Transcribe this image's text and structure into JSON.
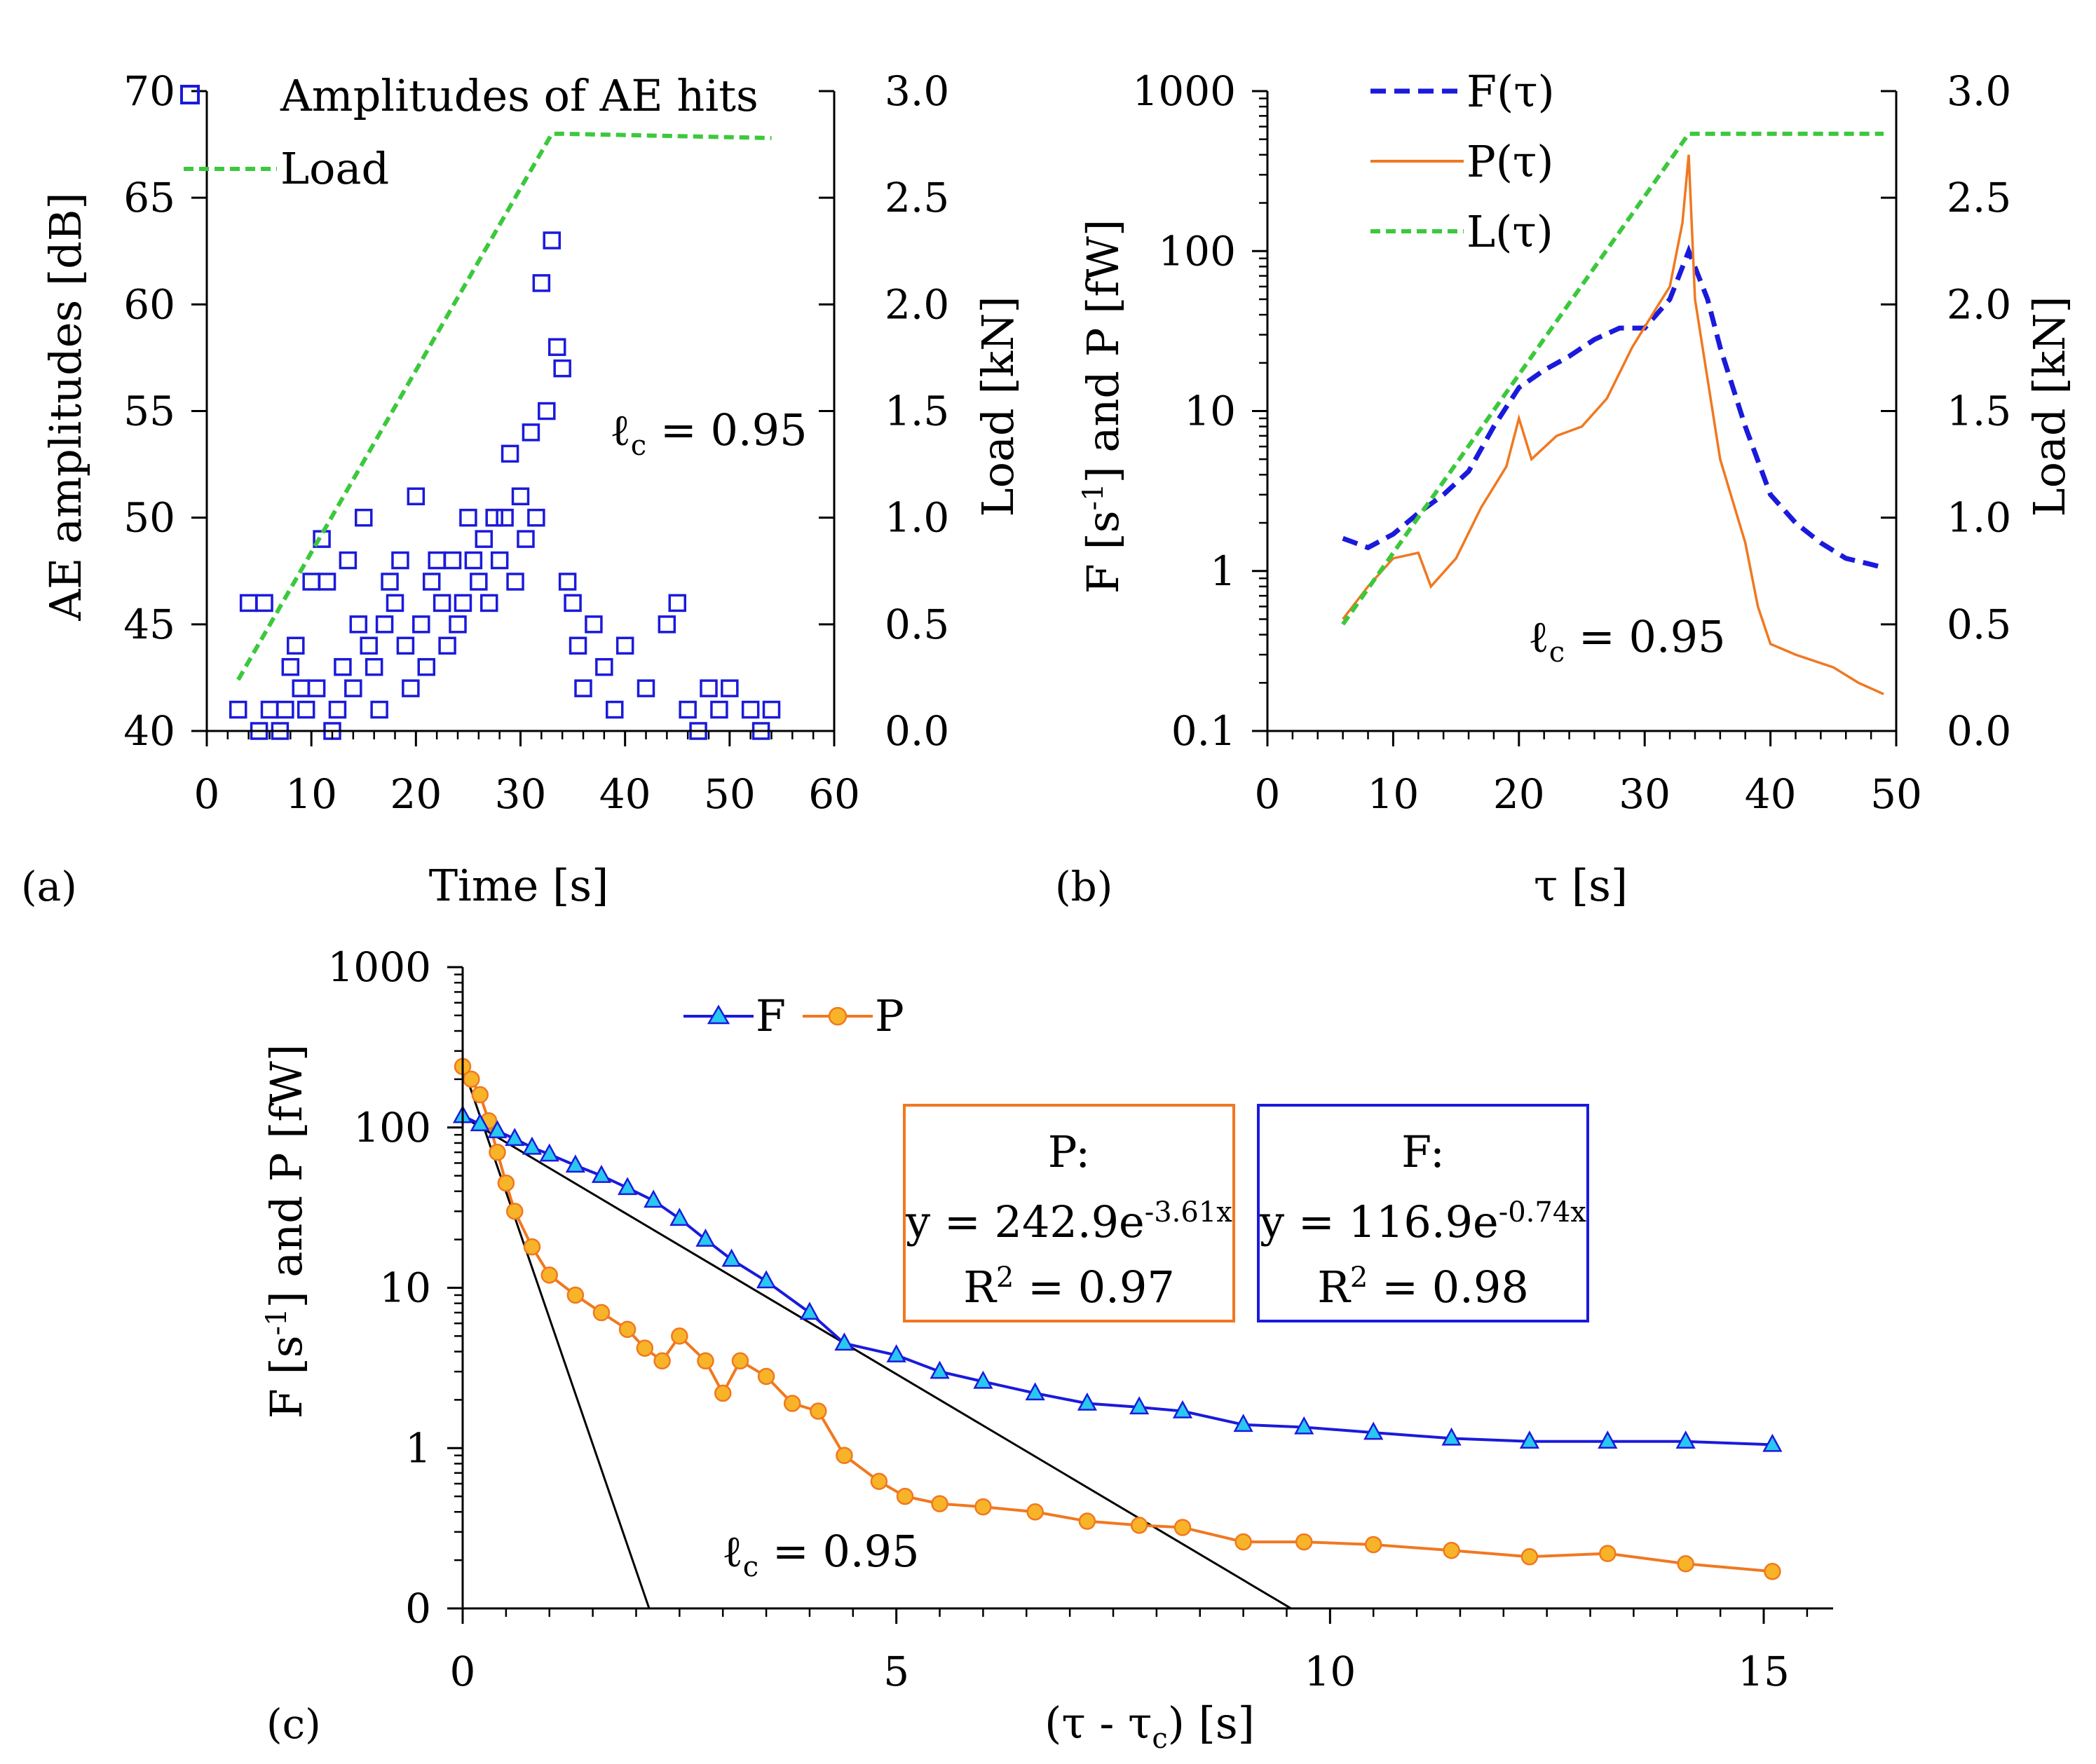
{
  "panels": {
    "a": {
      "tag": "(a)",
      "label_lc": "ℓ",
      "label_lc_sub": "c",
      "label_lc_val": " = 0.95",
      "legend": {
        "scatter": "Amplitudes of AE hits",
        "load": "Load"
      },
      "xlabel": "Time [s]",
      "ylabel_left": "AE amplitudes [dB]",
      "ylabel_right": "Load [kN]",
      "xticks": [
        "0",
        "10",
        "20",
        "30",
        "40",
        "50",
        "60"
      ],
      "yticks_left": [
        "40",
        "45",
        "50",
        "55",
        "60",
        "65",
        "70"
      ],
      "yticks_right": [
        "0.0",
        "0.5",
        "1.0",
        "1.5",
        "2.0",
        "2.5",
        "3.0"
      ]
    },
    "b": {
      "tag": "(b)",
      "label_lc": "ℓ",
      "label_lc_sub": "c",
      "label_lc_val": " = 0.95",
      "legend": {
        "F": "F(τ)",
        "P": "P(τ)",
        "L": "L(τ)"
      },
      "xlabel": "τ [s]",
      "ylabel_left_a": "F [s",
      "ylabel_left_sup": "-1",
      "ylabel_left_b": "] and P [fW]",
      "ylabel_right": "Load [kN]",
      "xticks": [
        "0",
        "10",
        "20",
        "30",
        "40",
        "50"
      ],
      "yticks_left": [
        "0.1",
        "1",
        "10",
        "100",
        "1000"
      ],
      "yticks_right": [
        "0.0",
        "0.5",
        "1.0",
        "1.5",
        "2.0",
        "2.5",
        "3.0"
      ]
    },
    "c": {
      "tag": "(c)",
      "label_lc": "ℓ",
      "label_lc_sub": "c",
      "label_lc_val": " = 0.95",
      "legend": {
        "F": "F",
        "P": "P"
      },
      "xlabel_a": "(τ - τ",
      "xlabel_sub": "c",
      "xlabel_b": ") [s]",
      "ylabel_left_a": "F [s",
      "ylabel_left_sup": "-1",
      "ylabel_left_b": "] and P [fW]",
      "xticks": [
        "0",
        "5",
        "10",
        "15"
      ],
      "yticks_left": [
        "0",
        "1",
        "10",
        "100",
        "1000"
      ],
      "box_P": {
        "title": "P:",
        "eq_a": "y = 242.9e",
        "eq_sup": "-3.61x",
        "r2_a": "R",
        "r2_sup": "2",
        "r2_b": " = 0.97"
      },
      "box_F": {
        "title": "F:",
        "eq_a": "y = 116.9e",
        "eq_sup": "-0.74x",
        "r2_a": "R",
        "r2_sup": "2",
        "r2_b": " = 0.98"
      }
    }
  },
  "colors": {
    "blue": "#1a1adc",
    "orange": "#f07820",
    "green": "#3cc83c",
    "cyan": "#28c8f0",
    "gold": "#f8b428",
    "black": "#000000"
  },
  "chart_data": [
    {
      "type": "scatter",
      "id": "a",
      "xlim": [
        0,
        60
      ],
      "ylim": [
        40,
        70
      ],
      "y2lim": [
        0,
        3
      ],
      "series": [
        {
          "name": "Amplitudes of AE hits",
          "points": [
            [
              3,
              41
            ],
            [
              4,
              46
            ],
            [
              5,
              40
            ],
            [
              5.5,
              46
            ],
            [
              6,
              41
            ],
            [
              7,
              40
            ],
            [
              7.5,
              41
            ],
            [
              8,
              43
            ],
            [
              8.5,
              44
            ],
            [
              9,
              42
            ],
            [
              9.5,
              41
            ],
            [
              10,
              47
            ],
            [
              10.5,
              42
            ],
            [
              11,
              49
            ],
            [
              11.5,
              47
            ],
            [
              12,
              40
            ],
            [
              12.5,
              41
            ],
            [
              13,
              43
            ],
            [
              13.5,
              48
            ],
            [
              14,
              42
            ],
            [
              14.5,
              45
            ],
            [
              15,
              50
            ],
            [
              15.5,
              44
            ],
            [
              16,
              43
            ],
            [
              16.5,
              41
            ],
            [
              17,
              45
            ],
            [
              17.5,
              47
            ],
            [
              18,
              46
            ],
            [
              18.5,
              48
            ],
            [
              19,
              44
            ],
            [
              19.5,
              42
            ],
            [
              20,
              51
            ],
            [
              20.5,
              45
            ],
            [
              21,
              43
            ],
            [
              21.5,
              47
            ],
            [
              22,
              48
            ],
            [
              22.5,
              46
            ],
            [
              23,
              44
            ],
            [
              23.5,
              48
            ],
            [
              24,
              45
            ],
            [
              24.5,
              46
            ],
            [
              25,
              50
            ],
            [
              25.5,
              48
            ],
            [
              26,
              47
            ],
            [
              26.5,
              49
            ],
            [
              27,
              46
            ],
            [
              27.5,
              50
            ],
            [
              28,
              48
            ],
            [
              28.5,
              50
            ],
            [
              29,
              53
            ],
            [
              29.5,
              47
            ],
            [
              30,
              51
            ],
            [
              30.5,
              49
            ],
            [
              31,
              54
            ],
            [
              31.5,
              50
            ],
            [
              32,
              61
            ],
            [
              32.5,
              55
            ],
            [
              33,
              63
            ],
            [
              33.5,
              58
            ],
            [
              34,
              57
            ],
            [
              34.5,
              47
            ],
            [
              35,
              46
            ],
            [
              35.5,
              44
            ],
            [
              36,
              42
            ],
            [
              37,
              45
            ],
            [
              38,
              43
            ],
            [
              39,
              41
            ],
            [
              40,
              44
            ],
            [
              42,
              42
            ],
            [
              44,
              45
            ],
            [
              45,
              46
            ],
            [
              46,
              41
            ],
            [
              47,
              40
            ],
            [
              48,
              42
            ],
            [
              49,
              41
            ],
            [
              50,
              42
            ],
            [
              52,
              41
            ],
            [
              53,
              40
            ],
            [
              54,
              41
            ]
          ]
        },
        {
          "name": "Load",
          "axis": "right",
          "points": [
            [
              3,
              0.24
            ],
            [
              33,
              2.8
            ],
            [
              34,
              2.8
            ],
            [
              54,
              2.78
            ]
          ]
        }
      ]
    },
    {
      "type": "line",
      "id": "b",
      "xlim": [
        0,
        50
      ],
      "ylim_log": [
        0.1,
        1000
      ],
      "y2lim": [
        0,
        3
      ],
      "series": [
        {
          "name": "F(τ)",
          "points": [
            [
              6,
              1.6
            ],
            [
              8,
              1.4
            ],
            [
              10,
              1.7
            ],
            [
              12,
              2.3
            ],
            [
              14,
              3.0
            ],
            [
              16,
              4.2
            ],
            [
              18,
              8.0
            ],
            [
              20,
              14
            ],
            [
              22,
              18
            ],
            [
              24,
              22
            ],
            [
              26,
              28
            ],
            [
              28,
              33
            ],
            [
              30,
              33
            ],
            [
              32,
              50
            ],
            [
              33.5,
              100
            ],
            [
              35,
              50
            ],
            [
              36,
              25
            ],
            [
              38,
              8
            ],
            [
              40,
              3
            ],
            [
              42,
              2
            ],
            [
              44,
              1.5
            ],
            [
              46,
              1.2
            ],
            [
              48,
              1.1
            ],
            [
              49,
              1.05
            ]
          ]
        },
        {
          "name": "P(τ)",
          "points": [
            [
              6,
              0.5
            ],
            [
              8,
              0.8
            ],
            [
              10,
              1.2
            ],
            [
              12,
              1.3
            ],
            [
              13,
              0.8
            ],
            [
              15,
              1.2
            ],
            [
              17,
              2.5
            ],
            [
              19,
              4.5
            ],
            [
              20,
              9
            ],
            [
              21,
              5
            ],
            [
              23,
              7
            ],
            [
              25,
              8
            ],
            [
              27,
              12
            ],
            [
              29,
              25
            ],
            [
              31,
              45
            ],
            [
              32,
              60
            ],
            [
              33,
              150
            ],
            [
              33.5,
              400
            ],
            [
              34,
              50
            ],
            [
              36,
              5
            ],
            [
              38,
              1.5
            ],
            [
              39,
              0.6
            ],
            [
              40,
              0.35
            ],
            [
              42,
              0.3
            ],
            [
              45,
              0.25
            ],
            [
              47,
              0.2
            ],
            [
              49,
              0.17
            ]
          ]
        },
        {
          "name": "L(τ)",
          "axis": "right",
          "points": [
            [
              6,
              0.5
            ],
            [
              33.5,
              2.8
            ],
            [
              49,
              2.8
            ]
          ]
        }
      ]
    },
    {
      "type": "line",
      "id": "c",
      "xlim": [
        0,
        15.8
      ],
      "ylim_log": [
        0.1,
        1000
      ],
      "series": [
        {
          "name": "F",
          "marker": "triangle",
          "points": [
            [
              0,
              118
            ],
            [
              0.2,
              105
            ],
            [
              0.4,
              95
            ],
            [
              0.6,
              85
            ],
            [
              0.8,
              75
            ],
            [
              1,
              68
            ],
            [
              1.3,
              58
            ],
            [
              1.6,
              50
            ],
            [
              1.9,
              42
            ],
            [
              2.2,
              35
            ],
            [
              2.5,
              27
            ],
            [
              2.8,
              20
            ],
            [
              3.1,
              15
            ],
            [
              3.5,
              11
            ],
            [
              4,
              7
            ],
            [
              4.4,
              4.5
            ],
            [
              5,
              3.8
            ],
            [
              5.5,
              3.0
            ],
            [
              6,
              2.6
            ],
            [
              6.6,
              2.2
            ],
            [
              7.2,
              1.9
            ],
            [
              7.8,
              1.8
            ],
            [
              8.3,
              1.7
            ],
            [
              9,
              1.4
            ],
            [
              9.7,
              1.35
            ],
            [
              10.5,
              1.25
            ],
            [
              11.4,
              1.15
            ],
            [
              12.3,
              1.1
            ],
            [
              13.2,
              1.1
            ],
            [
              14.1,
              1.1
            ],
            [
              15.1,
              1.05
            ]
          ]
        },
        {
          "name": "P",
          "marker": "circle",
          "points": [
            [
              0,
              240
            ],
            [
              0.1,
              200
            ],
            [
              0.2,
              160
            ],
            [
              0.3,
              110
            ],
            [
              0.4,
              70
            ],
            [
              0.5,
              45
            ],
            [
              0.6,
              30
            ],
            [
              0.8,
              18
            ],
            [
              1,
              12
            ],
            [
              1.3,
              9
            ],
            [
              1.6,
              7
            ],
            [
              1.9,
              5.5
            ],
            [
              2.1,
              4.2
            ],
            [
              2.3,
              3.5
            ],
            [
              2.5,
              5
            ],
            [
              2.8,
              3.5
            ],
            [
              3,
              2.2
            ],
            [
              3.2,
              3.5
            ],
            [
              3.5,
              2.8
            ],
            [
              3.8,
              1.9
            ],
            [
              4.1,
              1.7
            ],
            [
              4.4,
              0.9
            ],
            [
              4.8,
              0.62
            ],
            [
              5.1,
              0.5
            ],
            [
              5.5,
              0.45
            ],
            [
              6,
              0.43
            ],
            [
              6.6,
              0.4
            ],
            [
              7.2,
              0.35
            ],
            [
              7.8,
              0.33
            ],
            [
              8.3,
              0.32
            ],
            [
              9,
              0.26
            ],
            [
              9.7,
              0.26
            ],
            [
              10.5,
              0.25
            ],
            [
              11.4,
              0.23
            ],
            [
              12.3,
              0.21
            ],
            [
              13.2,
              0.22
            ],
            [
              14.1,
              0.19
            ],
            [
              15.1,
              0.17
            ]
          ]
        },
        {
          "name": "P fit",
          "line_only": true,
          "points": [
            [
              0,
              242.9
            ],
            [
              2.15,
              0.1
            ]
          ]
        },
        {
          "name": "F fit",
          "line_only": true,
          "points": [
            [
              0,
              116.9
            ],
            [
              9.55,
              0.1
            ]
          ]
        }
      ]
    }
  ]
}
